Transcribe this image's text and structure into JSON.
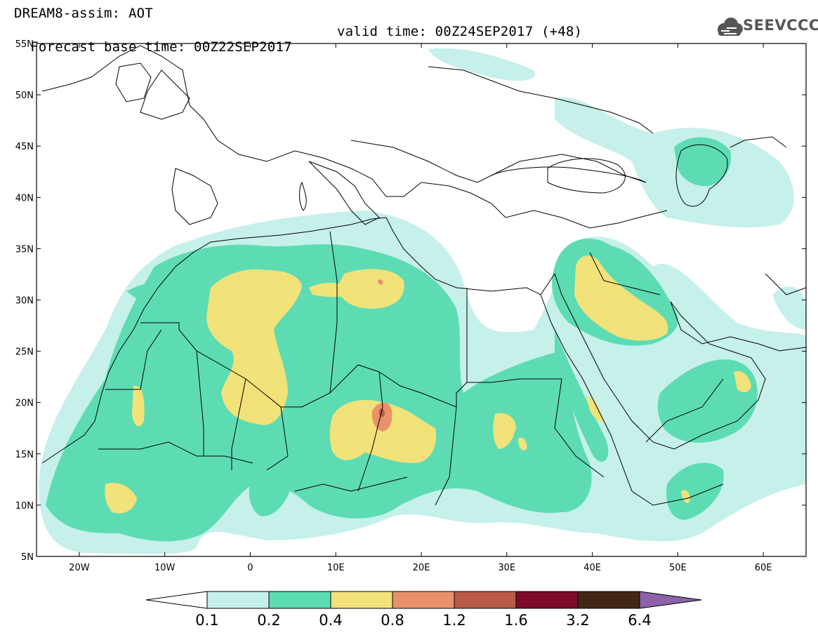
{
  "header": {
    "title_line1": "DREAM8-assim: AOT",
    "forecast_base": "Forecast base time: 00Z22SEP2017",
    "valid_time": "valid time: 00Z24SEP2017 (+48)"
  },
  "logo": {
    "text": "SEEVCCC",
    "icon": "cloud-icon"
  },
  "map": {
    "lat_labels": [
      "55N",
      "50N",
      "45N",
      "40N",
      "35N",
      "30N",
      "25N",
      "20N",
      "15N",
      "10N",
      "5N"
    ],
    "lon_labels": [
      "20W",
      "10W",
      "0",
      "10E",
      "20E",
      "30E",
      "40E",
      "50E",
      "60E"
    ],
    "colors": {
      "c01": "#c6f0ea",
      "c02": "#5ddcb4",
      "c04": "#f1e279",
      "c08": "#e9926a",
      "c12": "#b95b47",
      "c16": "#7c0b2a",
      "c32": "#422716",
      "c64": "#8e62a8"
    }
  },
  "colorbar": {
    "ticks": [
      "0.1",
      "0.2",
      "0.4",
      "0.8",
      "1.2",
      "1.6",
      "3.2",
      "6.4"
    ],
    "colors": [
      "#c6f0ea",
      "#5ddcb4",
      "#f1e279",
      "#e9926a",
      "#b95b47",
      "#7c0b2a",
      "#422716"
    ],
    "under_color": "#ffffff",
    "over_color": "#8e62a8"
  }
}
